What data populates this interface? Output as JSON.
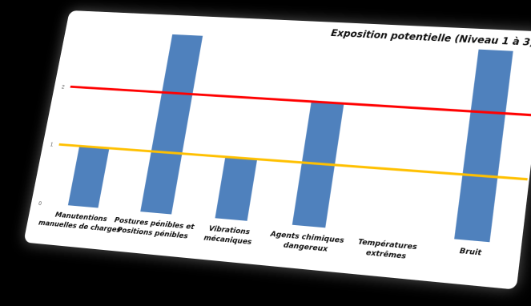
{
  "chart_data": {
    "type": "bar",
    "title": "Exposition potentielle (Niveau 1 à 3)",
    "categories": [
      [
        "Manutentions",
        "manuelles de charges"
      ],
      [
        "Postures pénibles et",
        "Positions pénibles"
      ],
      [
        "Vibrations",
        "mécaniques"
      ],
      [
        "Agents chimiques",
        "dangereux"
      ],
      [
        "Températures",
        "extrêmes"
      ],
      [
        "Bruit"
      ]
    ],
    "values": [
      1,
      3,
      1,
      2,
      0,
      3
    ],
    "yticks": [
      "0",
      "1",
      "2"
    ],
    "ylim": [
      0,
      3
    ],
    "reference_lines": [
      {
        "value": 2,
        "color": "#ff0000"
      },
      {
        "value": 1,
        "color": "#ffc000"
      }
    ],
    "bar_color": "#4f81bd",
    "grid": false
  }
}
